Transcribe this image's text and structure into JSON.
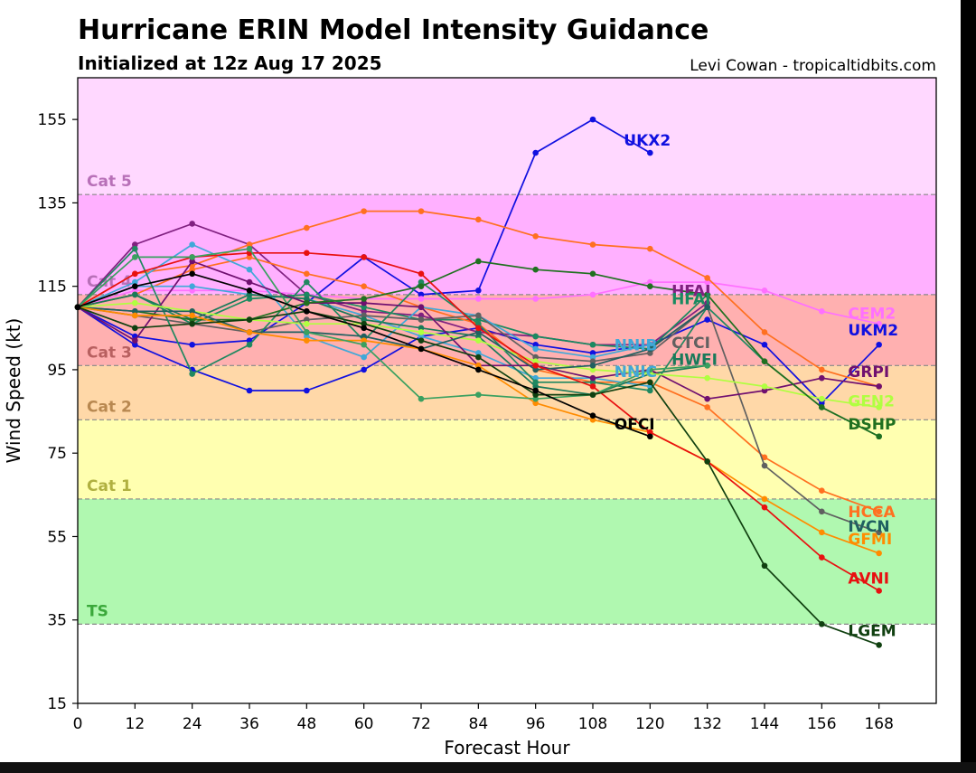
{
  "chart_data": {
    "type": "line",
    "title": "Hurricane ERIN Model Intensity Guidance",
    "subtitle": "Initialized at 12z Aug 17 2025",
    "credit": "Levi Cowan - tropicaltidbits.com",
    "xlabel": "Forecast Hour",
    "ylabel": "Wind Speed (kt)",
    "xlim": [
      0,
      180
    ],
    "ylim": [
      15,
      165
    ],
    "xticks": [
      0,
      12,
      24,
      36,
      48,
      60,
      72,
      84,
      96,
      108,
      120,
      132,
      144,
      156,
      168
    ],
    "yticks": [
      15,
      35,
      55,
      75,
      95,
      115,
      135,
      155
    ],
    "grid": false,
    "bands": [
      {
        "label": "",
        "from": 15,
        "to": 34,
        "color": "#ffffff",
        "label_color": "#000000"
      },
      {
        "label": "TS",
        "from": 34,
        "to": 64,
        "color": "#b0f8b0",
        "label_color": "#3aa83a"
      },
      {
        "label": "Cat 1",
        "from": 64,
        "to": 83,
        "color": "#ffffb0",
        "label_color": "#b0b040"
      },
      {
        "label": "Cat 2",
        "from": 83,
        "to": 96,
        "color": "#ffd8a8",
        "label_color": "#b88850"
      },
      {
        "label": "Cat 3",
        "from": 96,
        "to": 113,
        "color": "#ffb0b0",
        "label_color": "#b86060"
      },
      {
        "label": "Cat 4",
        "from": 113,
        "to": 137,
        "color": "#ffb0ff",
        "label_color": "#b870b8"
      },
      {
        "label": "Cat 5",
        "from": 137,
        "to": 165,
        "color": "#ffd8ff",
        "label_color": "#b870b8"
      }
    ],
    "series": [
      {
        "name": "UKX2",
        "color": "#1010e0",
        "label_color": "#1010e0",
        "x": [
          0,
          12,
          24,
          36,
          48,
          60,
          72,
          84,
          96,
          108,
          120
        ],
        "values": [
          110,
          103,
          101,
          102,
          111,
          122,
          113,
          114,
          147,
          155,
          147
        ]
      },
      {
        "name": "UKM2",
        "color": "#1010e0",
        "label_color": "#1010e0",
        "x": [
          0,
          12,
          24,
          36,
          48,
          60,
          72,
          84,
          96,
          108,
          120,
          132,
          144,
          156,
          168
        ],
        "values": [
          110,
          101,
          95,
          90,
          90,
          95,
          103,
          105,
          101,
          99,
          101,
          107,
          101,
          87,
          101
        ]
      },
      {
        "name": "CEM2",
        "color": "#ff70ff",
        "label_color": "#ff70ff",
        "x": [
          0,
          12,
          24,
          36,
          48,
          60,
          72,
          84,
          96,
          108,
          120,
          132,
          144,
          156,
          168
        ],
        "values": [
          110,
          114,
          114,
          114,
          113,
          112,
          112,
          112,
          112,
          113,
          116,
          116,
          114,
          109,
          106
        ]
      },
      {
        "name": "HFAI",
        "color": "#802080",
        "label_color": "#802080",
        "x": [
          0,
          12,
          24,
          36,
          48,
          60,
          72,
          84,
          96,
          108,
          120,
          132
        ],
        "values": [
          110,
          125,
          130,
          125,
          113,
          109,
          108,
          104,
          103,
          101,
          101,
          111
        ]
      },
      {
        "name": "HFAI",
        "color": "#1a8a60",
        "label_color": "#1a8a60",
        "x": [
          0,
          12,
          24,
          36,
          48,
          60,
          72,
          84,
          96,
          108,
          120,
          132
        ],
        "values": [
          110,
          113,
          106,
          112,
          113,
          110,
          107,
          107,
          103,
          101,
          100,
          113
        ]
      },
      {
        "name": "HCCA",
        "color": "#ff7020",
        "label_color": "#ff7020",
        "x": [
          0,
          12,
          24,
          36,
          48,
          60,
          72,
          84,
          96,
          108,
          120,
          132,
          144,
          156,
          168
        ],
        "values": [
          110,
          118,
          120,
          125,
          129,
          133,
          133,
          131,
          127,
          125,
          124,
          117,
          104,
          95,
          91
        ]
      },
      {
        "name": "HCCA",
        "color": "#ff7020",
        "label_color": "#ff7020",
        "x": [
          0,
          12,
          24,
          36,
          48,
          60,
          72,
          84,
          96,
          108,
          120,
          132,
          144,
          156,
          168
        ],
        "values": [
          110,
          113,
          119,
          122,
          118,
          115,
          110,
          106,
          95,
          92,
          92,
          86,
          74,
          66,
          61
        ]
      },
      {
        "name": "NNIB",
        "color": "#40a8d8",
        "label_color": "#40a8d8",
        "x": [
          0,
          12,
          24,
          36,
          48,
          60,
          72,
          84,
          96,
          108,
          120
        ],
        "values": [
          110,
          116,
          125,
          119,
          103,
          98,
          110,
          108,
          100,
          98,
          101
        ]
      },
      {
        "name": "NNIC",
        "color": "#40a8d8",
        "label_color": "#40a8d8",
        "x": [
          0,
          12,
          24,
          36,
          48,
          60,
          72,
          84,
          96,
          108,
          120
        ],
        "values": [
          110,
          115,
          115,
          113,
          112,
          108,
          103,
          99,
          93,
          93,
          91
        ]
      },
      {
        "name": "CTCI",
        "color": "#606060",
        "label_color": "#606060",
        "x": [
          0,
          12,
          24,
          36,
          48,
          60,
          72,
          84,
          96,
          108,
          120,
          132,
          144,
          156,
          168
        ],
        "values": [
          110,
          108,
          106,
          104,
          107,
          108,
          107,
          108,
          98,
          97,
          99,
          110,
          72,
          61,
          56
        ]
      },
      {
        "name": "HWFI",
        "color": "#1a7a5a",
        "label_color": "#1a7a5a",
        "x": [
          0,
          12,
          24,
          36,
          48,
          60,
          72,
          84,
          96,
          108,
          120,
          132
        ],
        "values": [
          110,
          113,
          107,
          113,
          112,
          107,
          105,
          103,
          91,
          89,
          94,
          96
        ]
      },
      {
        "name": "HWFI",
        "color": "#208860",
        "label_color": "#208860",
        "x": [
          0,
          12,
          24,
          36,
          48,
          60,
          72,
          84,
          96,
          108,
          120,
          132,
          144,
          156,
          168
        ],
        "values": [
          110,
          124,
          94,
          101,
          116,
          102,
          116,
          106,
          92,
          92,
          90,
          110,
          97,
          86,
          79
        ]
      },
      {
        "name": "GRPI",
        "color": "#701070",
        "label_color": "#701070",
        "x": [
          0,
          12,
          24,
          36,
          48,
          60,
          72,
          84,
          96,
          108,
          120,
          132,
          144,
          156,
          168
        ],
        "values": [
          110,
          102,
          121,
          116,
          111,
          111,
          110,
          96,
          96,
          93,
          95,
          88,
          90,
          93,
          91
        ]
      },
      {
        "name": "GEN2",
        "color": "#b0ff40",
        "label_color": "#b0ff40",
        "x": [
          0,
          12,
          24,
          36,
          48,
          60,
          72,
          84,
          96,
          108,
          120,
          132,
          144,
          156,
          168
        ],
        "values": [
          110,
          111,
          109,
          107,
          106,
          106,
          104,
          102,
          97,
          95,
          94,
          93,
          91,
          88,
          86
        ]
      },
      {
        "name": "DSHP",
        "color": "#207020",
        "label_color": "#207020",
        "x": [
          0,
          12,
          24,
          36,
          48,
          60,
          72,
          84,
          96,
          108,
          120,
          132,
          144,
          156,
          168
        ],
        "values": [
          110,
          109,
          107,
          107,
          111,
          112,
          115,
          121,
          119,
          118,
          115,
          113,
          97,
          86,
          79
        ]
      },
      {
        "name": "IVCN",
        "color": "#206060",
        "label_color": "#206060",
        "x": [
          0,
          12,
          24,
          36,
          48,
          60,
          72,
          84,
          96,
          108,
          120,
          132
        ],
        "values": [
          110,
          109,
          109,
          104,
          104,
          103,
          100,
          104,
          95,
          96,
          100,
          110
        ]
      },
      {
        "name": "GFMI",
        "color": "#ff8c00",
        "label_color": "#ff8c00",
        "x": [
          0,
          12,
          24,
          36,
          48,
          60,
          72,
          84,
          96,
          108,
          120,
          132,
          144,
          156,
          168
        ],
        "values": [
          110,
          108,
          108,
          104,
          102,
          102,
          100,
          96,
          87,
          83,
          80,
          73,
          64,
          56,
          51
        ]
      },
      {
        "name": "AVNI",
        "color": "#e81010",
        "label_color": "#e81010",
        "x": [
          0,
          12,
          24,
          36,
          48,
          60,
          72,
          84,
          96,
          108,
          120,
          132,
          144,
          156,
          168
        ],
        "values": [
          110,
          118,
          122,
          123,
          123,
          122,
          118,
          105,
          96,
          91,
          80,
          73,
          62,
          50,
          42
        ]
      },
      {
        "name": "",
        "color": "#3aa060",
        "label_color": "#3aa060",
        "x": [
          0,
          12,
          24,
          36,
          48,
          60,
          72,
          84,
          96,
          108,
          120,
          132
        ],
        "values": [
          110,
          122,
          122,
          124,
          104,
          101,
          88,
          89,
          88,
          89,
          95,
          96
        ]
      },
      {
        "name": "LGEM",
        "color": "#104010",
        "label_color": "#104010",
        "x": [
          0,
          12,
          24,
          36,
          48,
          60,
          72,
          84,
          96,
          108,
          120,
          132,
          144,
          156,
          168
        ],
        "values": [
          110,
          105,
          106,
          107,
          109,
          106,
          102,
          98,
          89,
          89,
          92,
          73,
          48,
          34,
          29
        ]
      },
      {
        "name": "OFCI",
        "color": "#000000",
        "label_color": "#000000",
        "x": [
          0,
          12,
          24,
          36,
          48,
          60,
          72,
          84,
          96,
          108,
          120
        ],
        "values": [
          110,
          115,
          118,
          114,
          109,
          105,
          100,
          95,
          90,
          84,
          79
        ]
      }
    ],
    "series_labels": [
      {
        "name": "UKX2",
        "color": "#1010e0",
        "x": 114.5,
        "y": 150
      },
      {
        "name": "UKM2",
        "color": "#1010e0",
        "x": 161.5,
        "y": 104.5
      },
      {
        "name": "CEM2",
        "color": "#ff70ff",
        "x": 161.5,
        "y": 108.5
      },
      {
        "name": "HFAI",
        "color": "#802080",
        "x": 124.5,
        "y": 114
      },
      {
        "name": "HFAI",
        "color": "#1a8a60",
        "x": 124.5,
        "y": 112
      },
      {
        "name": "NNIB",
        "color": "#40a8d8",
        "x": 112.5,
        "y": 101
      },
      {
        "name": "NNIC",
        "color": "#40a8d8",
        "x": 112.5,
        "y": 94.5
      },
      {
        "name": "CTCI",
        "color": "#606060",
        "x": 124.5,
        "y": 101.5
      },
      {
        "name": "HWFI",
        "color": "#1a7a5a",
        "x": 124.5,
        "y": 97.5
      },
      {
        "name": "GRPI",
        "color": "#701070",
        "x": 161.5,
        "y": 94.5
      },
      {
        "name": "GEN2",
        "color": "#b0ff40",
        "x": 161.5,
        "y": 87.5
      },
      {
        "name": "DSHP",
        "color": "#207020",
        "x": 161.5,
        "y": 82
      },
      {
        "name": "OFCI",
        "color": "#000000",
        "x": 112.5,
        "y": 82
      },
      {
        "name": "HCCA",
        "color": "#ff7020",
        "x": 161.5,
        "y": 61
      },
      {
        "name": "IVCN",
        "color": "#206060",
        "x": 161.5,
        "y": 57.5
      },
      {
        "name": "GFMI",
        "color": "#ff8c00",
        "x": 161.5,
        "y": 54.5
      },
      {
        "name": "AVNI",
        "color": "#e81010",
        "x": 161.5,
        "y": 45
      },
      {
        "name": "LGEM",
        "color": "#104010",
        "x": 161.5,
        "y": 32.5
      }
    ]
  }
}
